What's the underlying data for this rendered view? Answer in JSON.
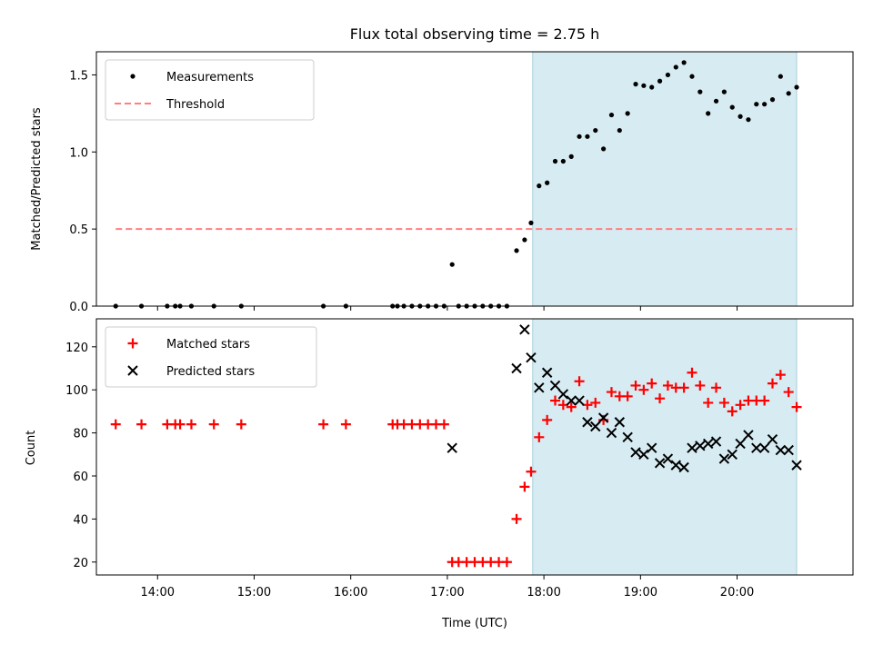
{
  "chart_data": [
    {
      "type": "scatter",
      "title": "Flux total observing time = 2.75 h",
      "xlabel": "",
      "ylabel": "Matched/Predicted stars",
      "ylim": [
        0,
        1.65
      ],
      "xlim": [
        "13:22",
        "21:12"
      ],
      "yticks": [
        "0.0",
        "0.5",
        "1.0",
        "1.5"
      ],
      "shaded_region": {
        "start": "17:53",
        "end": "20:37",
        "color": "#add8e6"
      },
      "legend_position": "upper-left",
      "series": [
        {
          "name": "Measurements",
          "marker": "dot",
          "color": "#000000",
          "points": [
            [
              "13:34",
              0
            ],
            [
              "13:50",
              0
            ],
            [
              "14:06",
              0
            ],
            [
              "14:11",
              0
            ],
            [
              "14:14",
              0
            ],
            [
              "14:21",
              0
            ],
            [
              "14:35",
              0
            ],
            [
              "14:52",
              0
            ],
            [
              "15:43",
              0
            ],
            [
              "15:57",
              0
            ],
            [
              "16:26",
              0
            ],
            [
              "16:29",
              0
            ],
            [
              "16:33",
              0
            ],
            [
              "16:38",
              0
            ],
            [
              "16:43",
              0
            ],
            [
              "16:48",
              0
            ],
            [
              "16:53",
              0
            ],
            [
              "16:58",
              0
            ],
            [
              "17:03",
              0.27
            ],
            [
              "17:07",
              0
            ],
            [
              "17:12",
              0
            ],
            [
              "17:17",
              0
            ],
            [
              "17:22",
              0
            ],
            [
              "17:27",
              0
            ],
            [
              "17:32",
              0
            ],
            [
              "17:37",
              0
            ],
            [
              "17:43",
              0.36
            ],
            [
              "17:48",
              0.43
            ],
            [
              "17:52",
              0.54
            ],
            [
              "17:57",
              0.78
            ],
            [
              "18:02",
              0.8
            ],
            [
              "18:07",
              0.94
            ],
            [
              "18:12",
              0.94
            ],
            [
              "18:17",
              0.97
            ],
            [
              "18:22",
              1.1
            ],
            [
              "18:27",
              1.1
            ],
            [
              "18:32",
              1.14
            ],
            [
              "18:37",
              1.02
            ],
            [
              "18:42",
              1.24
            ],
            [
              "18:47",
              1.14
            ],
            [
              "18:52",
              1.25
            ],
            [
              "18:57",
              1.44
            ],
            [
              "19:02",
              1.43
            ],
            [
              "19:07",
              1.42
            ],
            [
              "19:12",
              1.46
            ],
            [
              "19:17",
              1.5
            ],
            [
              "19:22",
              1.55
            ],
            [
              "19:27",
              1.58
            ],
            [
              "19:32",
              1.49
            ],
            [
              "19:37",
              1.39
            ],
            [
              "19:42",
              1.25
            ],
            [
              "19:47",
              1.33
            ],
            [
              "19:52",
              1.39
            ],
            [
              "19:57",
              1.29
            ],
            [
              "20:02",
              1.23
            ],
            [
              "20:07",
              1.21
            ],
            [
              "20:12",
              1.31
            ],
            [
              "20:17",
              1.31
            ],
            [
              "20:22",
              1.34
            ],
            [
              "20:27",
              1.49
            ],
            [
              "20:32",
              1.38
            ],
            [
              "20:37",
              1.42
            ]
          ]
        },
        {
          "name": "Threshold",
          "marker": "dashed-line",
          "color": "#ff7f7f",
          "points": [
            [
              "13:34",
              0.5
            ],
            [
              "20:37",
              0.5
            ]
          ]
        }
      ]
    },
    {
      "type": "scatter",
      "title": "",
      "xlabel": "Time (UTC)",
      "ylabel": "Count",
      "ylim": [
        14,
        133
      ],
      "xlim": [
        "13:22",
        "21:12"
      ],
      "xticks": [
        "14:00",
        "15:00",
        "16:00",
        "17:00",
        "18:00",
        "19:00",
        "20:00"
      ],
      "yticks": [
        "20",
        "40",
        "60",
        "80",
        "100",
        "120"
      ],
      "shaded_region": {
        "start": "17:53",
        "end": "20:37",
        "color": "#add8e6"
      },
      "legend_position": "upper-left",
      "series": [
        {
          "name": "Matched stars",
          "marker": "plus",
          "color": "#ff0000",
          "points": [
            [
              "13:34",
              84
            ],
            [
              "13:50",
              84
            ],
            [
              "14:06",
              84
            ],
            [
              "14:11",
              84
            ],
            [
              "14:14",
              84
            ],
            [
              "14:21",
              84
            ],
            [
              "14:35",
              84
            ],
            [
              "14:52",
              84
            ],
            [
              "15:43",
              84
            ],
            [
              "15:57",
              84
            ],
            [
              "16:26",
              84
            ],
            [
              "16:29",
              84
            ],
            [
              "16:33",
              84
            ],
            [
              "16:38",
              84
            ],
            [
              "16:43",
              84
            ],
            [
              "16:48",
              84
            ],
            [
              "16:53",
              84
            ],
            [
              "16:58",
              84
            ],
            [
              "17:03",
              20
            ],
            [
              "17:07",
              20
            ],
            [
              "17:12",
              20
            ],
            [
              "17:17",
              20
            ],
            [
              "17:22",
              20
            ],
            [
              "17:27",
              20
            ],
            [
              "17:32",
              20
            ],
            [
              "17:37",
              20
            ],
            [
              "17:43",
              40
            ],
            [
              "17:48",
              55
            ],
            [
              "17:52",
              62
            ],
            [
              "17:57",
              78
            ],
            [
              "18:02",
              86
            ],
            [
              "18:07",
              95
            ],
            [
              "18:12",
              93
            ],
            [
              "18:17",
              92
            ],
            [
              "18:22",
              104
            ],
            [
              "18:27",
              93
            ],
            [
              "18:32",
              94
            ],
            [
              "18:37",
              86
            ],
            [
              "18:42",
              99
            ],
            [
              "18:47",
              97
            ],
            [
              "18:52",
              97
            ],
            [
              "18:57",
              102
            ],
            [
              "19:02",
              100
            ],
            [
              "19:07",
              103
            ],
            [
              "19:12",
              96
            ],
            [
              "19:17",
              102
            ],
            [
              "19:22",
              101
            ],
            [
              "19:27",
              101
            ],
            [
              "19:32",
              108
            ],
            [
              "19:37",
              102
            ],
            [
              "19:42",
              94
            ],
            [
              "19:47",
              101
            ],
            [
              "19:52",
              94
            ],
            [
              "19:57",
              90
            ],
            [
              "20:02",
              93
            ],
            [
              "20:07",
              95
            ],
            [
              "20:12",
              95
            ],
            [
              "20:17",
              95
            ],
            [
              "20:22",
              103
            ],
            [
              "20:27",
              107
            ],
            [
              "20:32",
              99
            ],
            [
              "20:37",
              92
            ]
          ]
        },
        {
          "name": "Predicted stars",
          "marker": "x",
          "color": "#000000",
          "points": [
            [
              "17:03",
              73
            ],
            [
              "17:43",
              110
            ],
            [
              "17:48",
              128
            ],
            [
              "17:52",
              115
            ],
            [
              "17:57",
              101
            ],
            [
              "18:02",
              108
            ],
            [
              "18:07",
              102
            ],
            [
              "18:12",
              98
            ],
            [
              "18:17",
              95
            ],
            [
              "18:22",
              95
            ],
            [
              "18:27",
              85
            ],
            [
              "18:32",
              83
            ],
            [
              "18:37",
              87
            ],
            [
              "18:42",
              80
            ],
            [
              "18:47",
              85
            ],
            [
              "18:52",
              78
            ],
            [
              "18:57",
              71
            ],
            [
              "19:02",
              70
            ],
            [
              "19:07",
              73
            ],
            [
              "19:12",
              66
            ],
            [
              "19:17",
              68
            ],
            [
              "19:22",
              65
            ],
            [
              "19:27",
              64
            ],
            [
              "19:32",
              73
            ],
            [
              "19:37",
              74
            ],
            [
              "19:42",
              75
            ],
            [
              "19:47",
              76
            ],
            [
              "19:52",
              68
            ],
            [
              "19:57",
              70
            ],
            [
              "20:02",
              75
            ],
            [
              "20:07",
              79
            ],
            [
              "20:12",
              73
            ],
            [
              "20:17",
              73
            ],
            [
              "20:22",
              77
            ],
            [
              "20:27",
              72
            ],
            [
              "20:32",
              72
            ],
            [
              "20:37",
              65
            ]
          ]
        }
      ]
    }
  ]
}
